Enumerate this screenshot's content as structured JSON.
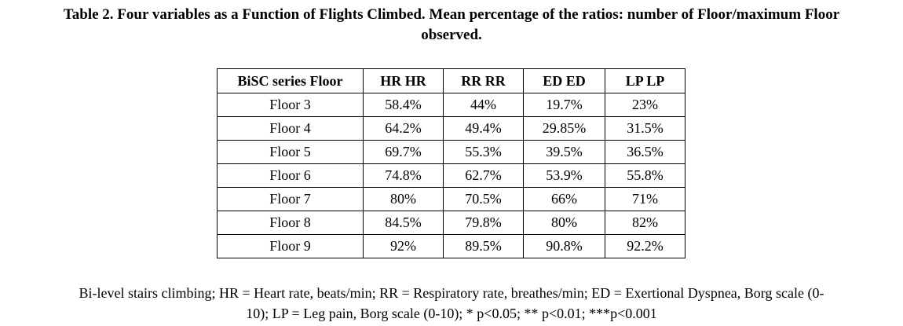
{
  "caption": {
    "line1": "Table 2. Four variables as a Function of Flights Climbed. Mean percentage of the ratios: number of Floor/maximum Floor",
    "line2": "observed."
  },
  "table": {
    "headers": [
      "BiSC series Floor",
      "HR HR",
      "RR RR",
      "ED ED",
      "LP LP"
    ],
    "rows": [
      [
        "Floor 3",
        "58.4%",
        "44%",
        "19.7%",
        "23%"
      ],
      [
        "Floor 4",
        "64.2%",
        "49.4%",
        "29.85%",
        "31.5%"
      ],
      [
        "Floor 5",
        "69.7%",
        "55.3%",
        "39.5%",
        "36.5%"
      ],
      [
        "Floor 6",
        "74.8%",
        "62.7%",
        "53.9%",
        "55.8%"
      ],
      [
        "Floor 7",
        "80%",
        "70.5%",
        "66%",
        "71%"
      ],
      [
        "Floor 8",
        "84.5%",
        "79.8%",
        "80%",
        "82%"
      ],
      [
        "Floor 9",
        "92%",
        "89.5%",
        "90.8%",
        "92.2%"
      ]
    ]
  },
  "footnote": {
    "line1": "Bi-level stairs climbing; HR = Heart rate, beats/min; RR = Respiratory rate, breathes/min; ED = Exertional Dyspnea, Borg scale (0-",
    "line2": "10); LP = Leg pain, Borg scale (0-10); * p<0.05; ** p<0.01; ***p<0.001"
  }
}
